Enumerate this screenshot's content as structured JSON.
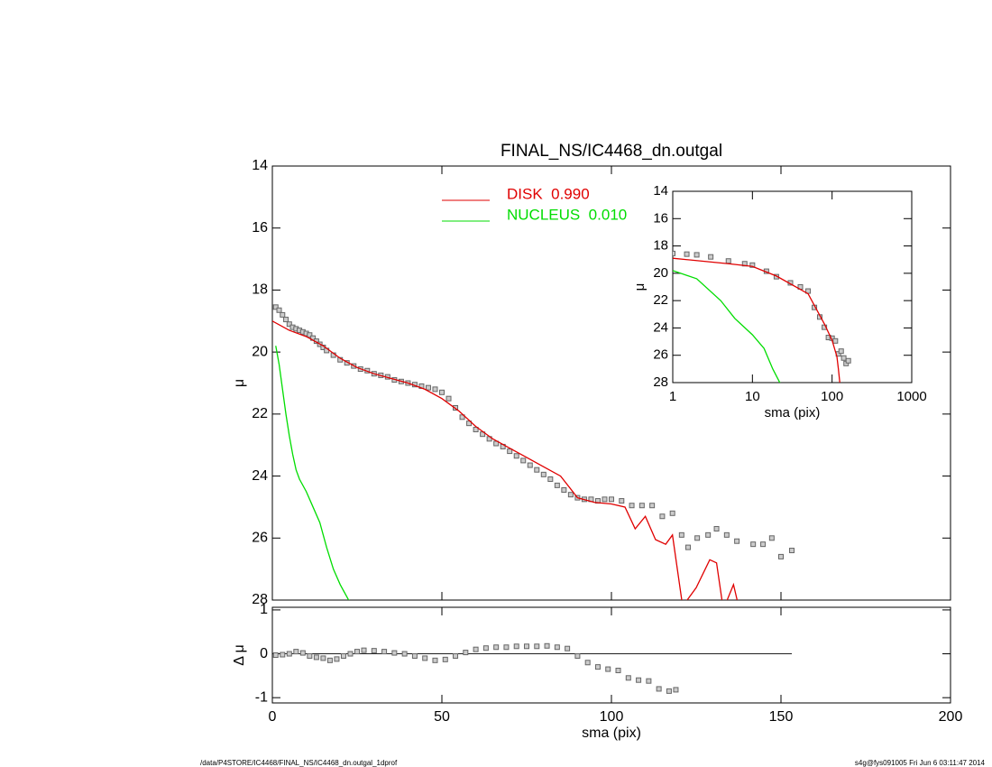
{
  "chart_data": [
    {
      "type": "line",
      "title": "FINAL_NS/IC4468_dn.outgal",
      "ylabel": "μ",
      "xlim": [
        0,
        200
      ],
      "xticks": [
        0,
        50,
        100,
        150,
        200
      ],
      "xtick_labels": false,
      "ylim": [
        28,
        14
      ],
      "yticks": [
        14,
        16,
        18,
        20,
        22,
        24,
        26,
        28
      ],
      "series": [
        {
          "style": "markers",
          "color": "#666666",
          "x": [
            1,
            2,
            3,
            4,
            5,
            6,
            7,
            8,
            9,
            10,
            11,
            12,
            13,
            14,
            15,
            16,
            18,
            20,
            22,
            24,
            26,
            28,
            30,
            32,
            34,
            36,
            38,
            40,
            42,
            44,
            46,
            48,
            50,
            52,
            54,
            56,
            58,
            60,
            62,
            64,
            66,
            68,
            70,
            72,
            74,
            76,
            78,
            80,
            82,
            84,
            86,
            88,
            90,
            92,
            94,
            96,
            98,
            100,
            103,
            106,
            109,
            112,
            115,
            118,
            120.7,
            122.6,
            125.3,
            128.5,
            131,
            134,
            137,
            141.8,
            144.7,
            147.3,
            150,
            153.2
          ],
          "values": [
            18.55,
            18.65,
            18.8,
            18.95,
            19.1,
            19.2,
            19.25,
            19.3,
            19.35,
            19.4,
            19.45,
            19.55,
            19.65,
            19.75,
            19.85,
            19.95,
            20.1,
            20.25,
            20.35,
            20.45,
            20.55,
            20.6,
            20.7,
            20.75,
            20.8,
            20.9,
            20.95,
            21.0,
            21.05,
            21.1,
            21.15,
            21.2,
            21.3,
            21.5,
            21.8,
            22.1,
            22.3,
            22.5,
            22.65,
            22.8,
            22.95,
            23.05,
            23.2,
            23.35,
            23.5,
            23.65,
            23.8,
            23.95,
            24.1,
            24.3,
            24.45,
            24.6,
            24.7,
            24.75,
            24.75,
            24.8,
            24.75,
            24.75,
            24.8,
            24.95,
            24.95,
            24.95,
            25.3,
            25.2,
            25.9,
            26.3,
            26.0,
            25.9,
            25.7,
            25.9,
            26.1,
            26.2,
            26.2,
            26.0,
            26.6,
            26.4
          ]
        },
        {
          "name": "DISK  0.990",
          "style": "line",
          "color": "#e00000",
          "x": [
            0,
            5,
            10,
            15,
            20,
            25,
            30,
            35,
            40,
            45,
            50,
            55,
            60,
            65,
            70,
            75,
            80,
            85,
            90,
            95,
            100,
            104,
            107,
            110,
            113,
            116,
            118,
            121,
            125,
            129,
            131,
            133,
            136,
            137.5
          ],
          "values": [
            19.0,
            19.3,
            19.5,
            19.8,
            20.2,
            20.5,
            20.7,
            20.85,
            21.0,
            21.2,
            21.5,
            21.9,
            22.4,
            22.8,
            23.1,
            23.4,
            23.7,
            24.0,
            24.7,
            24.85,
            24.9,
            25.0,
            25.7,
            25.3,
            26.05,
            26.2,
            25.9,
            28.2,
            27.6,
            26.7,
            26.8,
            28.3,
            27.5,
            28.2
          ]
        },
        {
          "name": "NUCLEUS  0.010",
          "style": "line",
          "color": "#00dd00",
          "x": [
            1,
            2,
            3,
            4,
            5,
            6,
            7,
            8,
            10,
            12,
            14,
            16,
            18,
            20,
            22,
            23.5
          ],
          "values": [
            19.8,
            20.4,
            21.2,
            22.0,
            22.7,
            23.3,
            23.8,
            24.1,
            24.5,
            25.0,
            25.5,
            26.3,
            27.0,
            27.5,
            27.9,
            28.2
          ]
        }
      ]
    },
    {
      "type": "line",
      "xlabel": "sma (pix)",
      "ylabel": "Δ μ",
      "xlim": [
        0,
        200
      ],
      "xticks": [
        0,
        50,
        100,
        150,
        200
      ],
      "ylim": [
        -1.12,
        1.06
      ],
      "yticks": [
        -1,
        0,
        1
      ],
      "hline": 0,
      "series": [
        {
          "style": "markers",
          "color": "#666666",
          "x": [
            1,
            3,
            5,
            7,
            9,
            11,
            13,
            15,
            17,
            19,
            21,
            23,
            25,
            27,
            30,
            33,
            36,
            39,
            42,
            45,
            48,
            51,
            54,
            57,
            60,
            63,
            66,
            69,
            72,
            75,
            78,
            81,
            84,
            87,
            90,
            93,
            96,
            99,
            102,
            105,
            108,
            111,
            114,
            117,
            119
          ],
          "values": [
            -0.03,
            -0.02,
            0.0,
            0.05,
            0.02,
            -0.05,
            -0.08,
            -0.1,
            -0.15,
            -0.12,
            -0.05,
            0.0,
            0.05,
            0.08,
            0.07,
            0.05,
            0.02,
            0.0,
            -0.05,
            -0.1,
            -0.15,
            -0.13,
            -0.05,
            0.03,
            0.1,
            0.13,
            0.15,
            0.15,
            0.17,
            0.17,
            0.17,
            0.18,
            0.15,
            0.12,
            -0.05,
            -0.2,
            -0.3,
            -0.35,
            -0.38,
            -0.55,
            -0.6,
            -0.62,
            -0.8,
            -0.85,
            -0.82
          ]
        }
      ]
    },
    {
      "type": "line",
      "xlabel": "sma (pix)",
      "ylabel": "μ",
      "xscale": "log",
      "xlim": [
        1,
        1000
      ],
      "xticks": [
        1,
        10,
        100,
        1000
      ],
      "ylim": [
        28,
        14
      ],
      "yticks": [
        14,
        16,
        18,
        20,
        22,
        24,
        26,
        28
      ],
      "series": [
        {
          "style": "markers",
          "color": "#666666",
          "x": [
            1,
            1.5,
            2,
            3,
            5,
            8,
            10,
            15,
            20,
            30,
            40,
            50,
            60,
            70,
            80,
            90,
            100,
            110,
            120,
            130,
            140,
            150,
            160
          ],
          "values": [
            18.55,
            18.6,
            18.65,
            18.8,
            19.1,
            19.3,
            19.4,
            19.85,
            20.25,
            20.7,
            21.0,
            21.3,
            22.5,
            23.2,
            23.95,
            24.7,
            24.75,
            24.95,
            25.9,
            25.7,
            26.2,
            26.6,
            26.4
          ]
        },
        {
          "style": "line",
          "color": "#e00000",
          "x": [
            1,
            5,
            10,
            20,
            50,
            80,
            100,
            115,
            120,
            125
          ],
          "values": [
            18.9,
            19.3,
            19.5,
            20.2,
            21.5,
            23.7,
            24.9,
            26.1,
            27.0,
            28.0
          ]
        },
        {
          "style": "line",
          "color": "#00dd00",
          "x": [
            1,
            2,
            4,
            6,
            10,
            14,
            18,
            23
          ],
          "values": [
            19.8,
            20.4,
            22.0,
            23.3,
            24.5,
            25.5,
            27.0,
            28.2
          ]
        }
      ]
    }
  ],
  "footer": {
    "left": "/data/P4STORE/IC4468/FINAL_NS/IC4468_dn.outgal_1dprof",
    "right": "s4g@fys091005  Fri Jun  6 03:11:47 2014"
  }
}
